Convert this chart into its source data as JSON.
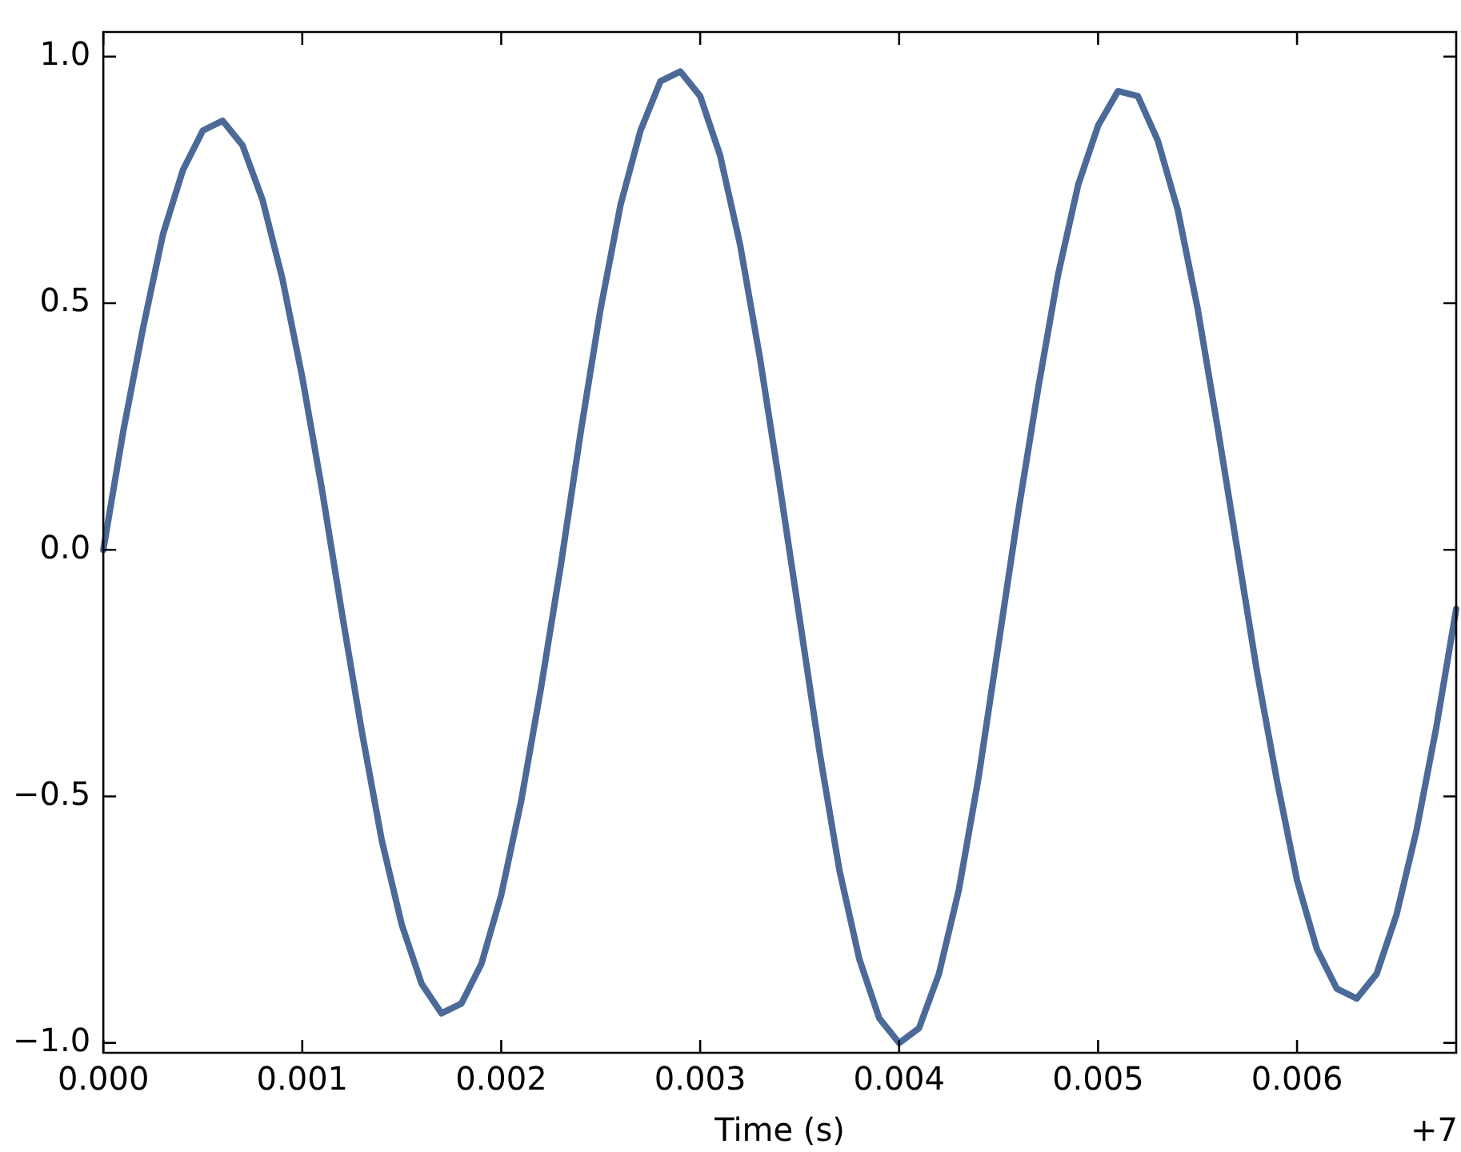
{
  "chart_data": {
    "type": "line",
    "xlabel": "Time (s)",
    "annotations": [
      "+7"
    ],
    "x": [
      0,
      0.0001,
      0.0002,
      0.0003,
      0.0004,
      0.0005,
      0.0006,
      0.0007,
      0.0008,
      0.0009,
      0.001,
      0.0011,
      0.0012,
      0.0013,
      0.0014,
      0.0015,
      0.0016,
      0.0017,
      0.0018,
      0.0019,
      0.002,
      0.0021,
      0.0022,
      0.0023,
      0.0024,
      0.0025,
      0.0026,
      0.0027,
      0.0028,
      0.0029,
      0.003,
      0.0031,
      0.0032,
      0.0033,
      0.0034,
      0.0035,
      0.0036,
      0.0037,
      0.0038,
      0.0039,
      0.004,
      0.0041,
      0.0042,
      0.0043,
      0.0044,
      0.0045,
      0.0046,
      0.0047,
      0.0048,
      0.0049,
      0.005,
      0.0051,
      0.0052,
      0.0053,
      0.0054,
      0.0055,
      0.0056,
      0.0057,
      0.0058,
      0.0059,
      0.006,
      0.0061,
      0.0062,
      0.0063,
      0.0064,
      0.0065,
      0.0066,
      0.0067,
      0.0068
    ],
    "series": [
      {
        "color": "#4c6a98",
        "values": [
          0,
          0.24,
          0.45,
          0.64,
          0.77,
          0.85,
          0.87,
          0.82,
          0.71,
          0.55,
          0.35,
          0.12,
          -0.13,
          -0.37,
          -0.59,
          -0.76,
          -0.88,
          -0.94,
          -0.92,
          -0.84,
          -0.7,
          -0.51,
          -0.28,
          -0.03,
          0.24,
          0.49,
          0.7,
          0.85,
          0.95,
          0.97,
          0.92,
          0.8,
          0.62,
          0.39,
          0.13,
          -0.14,
          -0.41,
          -0.65,
          -0.83,
          -0.95,
          -1.0,
          -0.97,
          -0.86,
          -0.69,
          -0.46,
          -0.19,
          0.08,
          0.33,
          0.56,
          0.74,
          0.86,
          0.93,
          0.92,
          0.83,
          0.69,
          0.49,
          0.25,
          0,
          -0.25,
          -0.47,
          -0.67,
          -0.81,
          -0.89,
          -0.91,
          -0.86,
          -0.74,
          -0.57,
          -0.36,
          -0.12
        ]
      }
    ],
    "xlim": [
      0,
      0.0068
    ],
    "xticks": [
      {
        "value": 0,
        "label": "0.000"
      },
      {
        "value": 0.001,
        "label": "0.001"
      },
      {
        "value": 0.002,
        "label": "0.002"
      },
      {
        "value": 0.003,
        "label": "0.003"
      },
      {
        "value": 0.004,
        "label": "0.004"
      },
      {
        "value": 0.005,
        "label": "0.005"
      },
      {
        "value": 0.006,
        "label": "0.006"
      }
    ],
    "ylim": [
      -1.02,
      1.05
    ],
    "yticks": [
      {
        "value": -1,
        "label": "−1.0"
      },
      {
        "value": -0.5,
        "label": "−0.5"
      },
      {
        "value": 0,
        "label": "0.0"
      },
      {
        "value": 0.5,
        "label": "0.5"
      },
      {
        "value": 1,
        "label": "1.0"
      }
    ],
    "grid": false,
    "legend": false,
    "marker": "none",
    "line_style": "solid"
  }
}
